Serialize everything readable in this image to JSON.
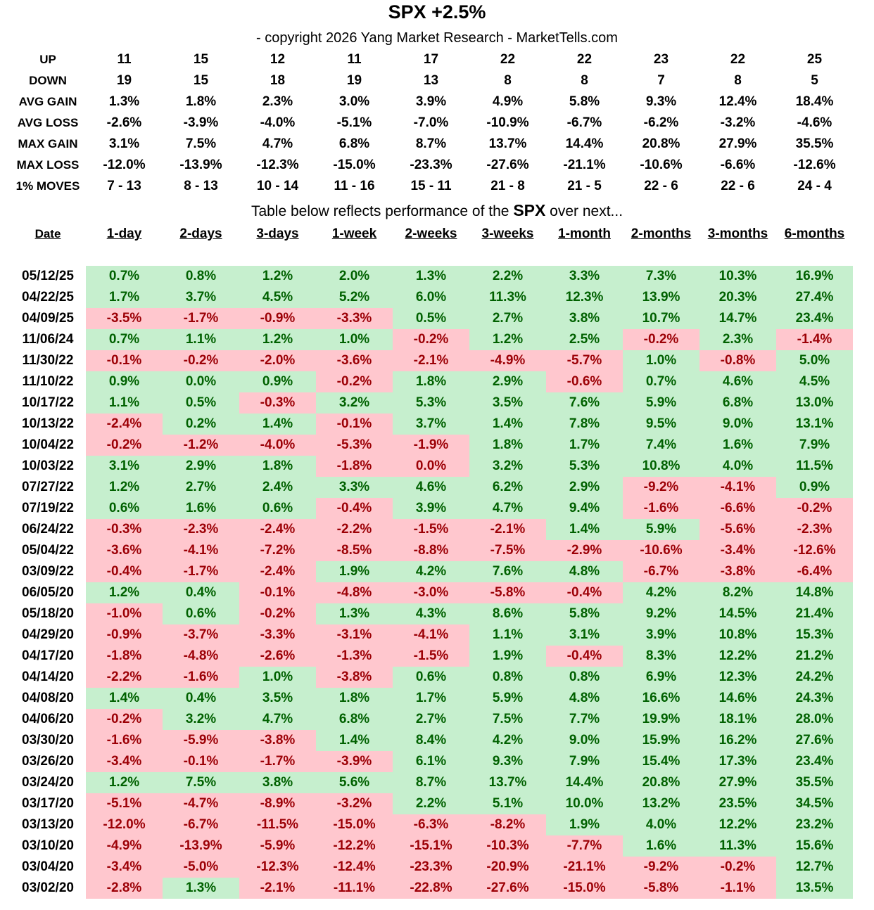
{
  "title": "SPX +2.5%",
  "copyright": "- copyright 2026 Yang Market Research - MarketTells.com",
  "stats": [
    {
      "label": "UP",
      "values": [
        "11",
        "15",
        "12",
        "11",
        "17",
        "22",
        "22",
        "23",
        "22",
        "25"
      ]
    },
    {
      "label": "DOWN",
      "values": [
        "19",
        "15",
        "18",
        "19",
        "13",
        "8",
        "8",
        "7",
        "8",
        "5"
      ]
    },
    {
      "label": "AVG GAIN",
      "values": [
        "1.3%",
        "1.8%",
        "2.3%",
        "3.0%",
        "3.9%",
        "4.9%",
        "5.8%",
        "9.3%",
        "12.4%",
        "18.4%"
      ]
    },
    {
      "label": "AVG LOSS",
      "values": [
        "-2.6%",
        "-3.9%",
        "-4.0%",
        "-5.1%",
        "-7.0%",
        "-10.9%",
        "-6.7%",
        "-6.2%",
        "-3.2%",
        "-4.6%"
      ]
    },
    {
      "label": "MAX GAIN",
      "values": [
        "3.1%",
        "7.5%",
        "4.7%",
        "6.8%",
        "8.7%",
        "13.7%",
        "14.4%",
        "20.8%",
        "27.9%",
        "35.5%"
      ]
    },
    {
      "label": "MAX LOSS",
      "values": [
        "-12.0%",
        "-13.9%",
        "-12.3%",
        "-15.0%",
        "-23.3%",
        "-27.6%",
        "-21.1%",
        "-10.6%",
        "-6.6%",
        "-12.6%"
      ]
    },
    {
      "label": "1% MOVES",
      "values": [
        "7 - 13",
        "8 - 13",
        "10 - 14",
        "11 - 16",
        "15 - 11",
        "21 - 8",
        "21 - 5",
        "22 - 6",
        "22 - 6",
        "24 - 4"
      ]
    }
  ],
  "subtitle": {
    "pre": "Table below reflects performance of the ",
    "ticker": "SPX",
    "post": " over next..."
  },
  "columns": [
    "Date",
    "1-day",
    "2-days",
    "3-days",
    "1-week",
    "2-weeks",
    "3-weeks",
    "1-month",
    "2-months",
    "3-months",
    "6-months"
  ],
  "colors": {
    "pos_bg": "#c6efce",
    "pos_text": "#006100",
    "neg_bg": "#ffc7ce",
    "neg_text": "#9c0006"
  },
  "negative_zero_cells": [
    {
      "row": 9,
      "col": 4
    }
  ],
  "rows": [
    {
      "date": "05/12/25",
      "values": [
        "0.7%",
        "0.8%",
        "1.2%",
        "2.0%",
        "1.3%",
        "2.2%",
        "3.3%",
        "7.3%",
        "10.3%",
        "16.9%"
      ]
    },
    {
      "date": "04/22/25",
      "values": [
        "1.7%",
        "3.7%",
        "4.5%",
        "5.2%",
        "6.0%",
        "11.3%",
        "12.3%",
        "13.9%",
        "20.3%",
        "27.4%"
      ]
    },
    {
      "date": "04/09/25",
      "values": [
        "-3.5%",
        "-1.7%",
        "-0.9%",
        "-3.3%",
        "0.5%",
        "2.7%",
        "3.8%",
        "10.7%",
        "14.7%",
        "23.4%"
      ]
    },
    {
      "date": "11/06/24",
      "values": [
        "0.7%",
        "1.1%",
        "1.2%",
        "1.0%",
        "-0.2%",
        "1.2%",
        "2.5%",
        "-0.2%",
        "2.3%",
        "-1.4%"
      ]
    },
    {
      "date": "11/30/22",
      "values": [
        "-0.1%",
        "-0.2%",
        "-2.0%",
        "-3.6%",
        "-2.1%",
        "-4.9%",
        "-5.7%",
        "1.0%",
        "-0.8%",
        "5.0%"
      ]
    },
    {
      "date": "11/10/22",
      "values": [
        "0.9%",
        "0.0%",
        "0.9%",
        "-0.2%",
        "1.8%",
        "2.9%",
        "-0.6%",
        "0.7%",
        "4.6%",
        "4.5%"
      ]
    },
    {
      "date": "10/17/22",
      "values": [
        "1.1%",
        "0.5%",
        "-0.3%",
        "3.2%",
        "5.3%",
        "3.5%",
        "7.6%",
        "5.9%",
        "6.8%",
        "13.0%"
      ]
    },
    {
      "date": "10/13/22",
      "values": [
        "-2.4%",
        "0.2%",
        "1.4%",
        "-0.1%",
        "3.7%",
        "1.4%",
        "7.8%",
        "9.5%",
        "9.0%",
        "13.1%"
      ]
    },
    {
      "date": "10/04/22",
      "values": [
        "-0.2%",
        "-1.2%",
        "-4.0%",
        "-5.3%",
        "-1.9%",
        "1.8%",
        "1.7%",
        "7.4%",
        "1.6%",
        "7.9%"
      ]
    },
    {
      "date": "10/03/22",
      "values": [
        "3.1%",
        "2.9%",
        "1.8%",
        "-1.8%",
        "0.0%",
        "3.2%",
        "5.3%",
        "10.8%",
        "4.0%",
        "11.5%"
      ]
    },
    {
      "date": "07/27/22",
      "values": [
        "1.2%",
        "2.7%",
        "2.4%",
        "3.3%",
        "4.6%",
        "6.2%",
        "2.9%",
        "-9.2%",
        "-4.1%",
        "0.9%"
      ]
    },
    {
      "date": "07/19/22",
      "values": [
        "0.6%",
        "1.6%",
        "0.6%",
        "-0.4%",
        "3.9%",
        "4.7%",
        "9.4%",
        "-1.6%",
        "-6.6%",
        "-0.2%"
      ]
    },
    {
      "date": "06/24/22",
      "values": [
        "-0.3%",
        "-2.3%",
        "-2.4%",
        "-2.2%",
        "-1.5%",
        "-2.1%",
        "1.4%",
        "5.9%",
        "-5.6%",
        "-2.3%"
      ]
    },
    {
      "date": "05/04/22",
      "values": [
        "-3.6%",
        "-4.1%",
        "-7.2%",
        "-8.5%",
        "-8.8%",
        "-7.5%",
        "-2.9%",
        "-10.6%",
        "-3.4%",
        "-12.6%"
      ]
    },
    {
      "date": "03/09/22",
      "values": [
        "-0.4%",
        "-1.7%",
        "-2.4%",
        "1.9%",
        "4.2%",
        "7.6%",
        "4.8%",
        "-6.7%",
        "-3.8%",
        "-6.4%"
      ]
    },
    {
      "date": "06/05/20",
      "values": [
        "1.2%",
        "0.4%",
        "-0.1%",
        "-4.8%",
        "-3.0%",
        "-5.8%",
        "-0.4%",
        "4.2%",
        "8.2%",
        "14.8%"
      ]
    },
    {
      "date": "05/18/20",
      "values": [
        "-1.0%",
        "0.6%",
        "-0.2%",
        "1.3%",
        "4.3%",
        "8.6%",
        "5.8%",
        "9.2%",
        "14.5%",
        "21.4%"
      ]
    },
    {
      "date": "04/29/20",
      "values": [
        "-0.9%",
        "-3.7%",
        "-3.3%",
        "-3.1%",
        "-4.1%",
        "1.1%",
        "3.1%",
        "3.9%",
        "10.8%",
        "15.3%"
      ]
    },
    {
      "date": "04/17/20",
      "values": [
        "-1.8%",
        "-4.8%",
        "-2.6%",
        "-1.3%",
        "-1.5%",
        "1.9%",
        "-0.4%",
        "8.3%",
        "12.2%",
        "21.2%"
      ]
    },
    {
      "date": "04/14/20",
      "values": [
        "-2.2%",
        "-1.6%",
        "1.0%",
        "-3.8%",
        "0.6%",
        "0.8%",
        "0.8%",
        "6.9%",
        "12.3%",
        "24.2%"
      ]
    },
    {
      "date": "04/08/20",
      "values": [
        "1.4%",
        "0.4%",
        "3.5%",
        "1.8%",
        "1.7%",
        "5.9%",
        "4.8%",
        "16.6%",
        "14.6%",
        "24.3%"
      ]
    },
    {
      "date": "04/06/20",
      "values": [
        "-0.2%",
        "3.2%",
        "4.7%",
        "6.8%",
        "2.7%",
        "7.5%",
        "7.7%",
        "19.9%",
        "18.1%",
        "28.0%"
      ]
    },
    {
      "date": "03/30/20",
      "values": [
        "-1.6%",
        "-5.9%",
        "-3.8%",
        "1.4%",
        "8.4%",
        "4.2%",
        "9.0%",
        "15.9%",
        "16.2%",
        "27.6%"
      ]
    },
    {
      "date": "03/26/20",
      "values": [
        "-3.4%",
        "-0.1%",
        "-1.7%",
        "-3.9%",
        "6.1%",
        "9.3%",
        "7.9%",
        "15.4%",
        "17.3%",
        "23.4%"
      ]
    },
    {
      "date": "03/24/20",
      "values": [
        "1.2%",
        "7.5%",
        "3.8%",
        "5.6%",
        "8.7%",
        "13.7%",
        "14.4%",
        "20.8%",
        "27.9%",
        "35.5%"
      ]
    },
    {
      "date": "03/17/20",
      "values": [
        "-5.1%",
        "-4.7%",
        "-8.9%",
        "-3.2%",
        "2.2%",
        "5.1%",
        "10.0%",
        "13.2%",
        "23.5%",
        "34.5%"
      ]
    },
    {
      "date": "03/13/20",
      "values": [
        "-12.0%",
        "-6.7%",
        "-11.5%",
        "-15.0%",
        "-6.3%",
        "-8.2%",
        "1.9%",
        "4.0%",
        "12.2%",
        "23.2%"
      ]
    },
    {
      "date": "03/10/20",
      "values": [
        "-4.9%",
        "-13.9%",
        "-5.9%",
        "-12.2%",
        "-15.1%",
        "-10.3%",
        "-7.7%",
        "1.6%",
        "11.3%",
        "15.6%"
      ]
    },
    {
      "date": "03/04/20",
      "values": [
        "-3.4%",
        "-5.0%",
        "-12.3%",
        "-12.4%",
        "-23.3%",
        "-20.9%",
        "-21.1%",
        "-9.2%",
        "-0.2%",
        "12.7%"
      ]
    },
    {
      "date": "03/02/20",
      "values": [
        "-2.8%",
        "1.3%",
        "-2.1%",
        "-11.1%",
        "-22.8%",
        "-27.6%",
        "-15.0%",
        "-5.8%",
        "-1.1%",
        "13.5%"
      ]
    }
  ]
}
